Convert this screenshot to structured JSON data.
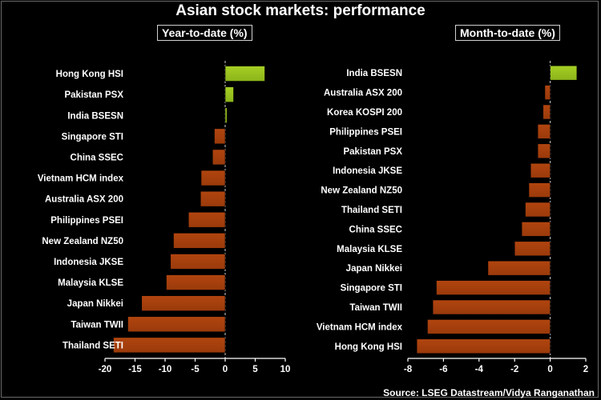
{
  "title": "Asian stock markets: performance",
  "source": "Source: LSEG Datastream/Vidya Ranganathan",
  "colors": {
    "positive": "#8bb41a",
    "negative": "#9a3a0b",
    "background": "#000000"
  },
  "chart_data": [
    {
      "type": "bar",
      "orientation": "horizontal",
      "title": "Year-to-date (%)",
      "categories": [
        "Hong Kong HSI",
        "Pakistan PSX",
        "India BSESN",
        "Singapore STI",
        "China SSEC",
        "Vietnam HCM index",
        "Australia ASX 200",
        "Philippines PSEI",
        "New Zealand NZ50",
        "Indonesia JKSE",
        "Malaysia KLSE",
        "Japan Nikkei",
        "Taiwan TWII",
        "Thailand SETI"
      ],
      "values": [
        6.6,
        1.4,
        0.3,
        -1.8,
        -2.1,
        -4.0,
        -4.1,
        -6.1,
        -8.6,
        -9.1,
        -9.8,
        -13.9,
        -16.2,
        -18.6
      ],
      "xlim": [
        -20,
        10
      ],
      "ticks": [
        -20,
        -15,
        -10,
        -5,
        0,
        5,
        10
      ],
      "tick_labels": [
        "-20",
        "-15",
        "-10",
        "-5",
        "0",
        "5",
        "10"
      ],
      "xlabel": "",
      "ylabel": ""
    },
    {
      "type": "bar",
      "orientation": "horizontal",
      "title": "Month-to-date (%)",
      "categories": [
        "India BSESN",
        "Australia ASX 200",
        "Korea KOSPI 200",
        "Philippines PSEI",
        "Pakistan PSX",
        "Indonesia JKSE",
        "New Zealand NZ50",
        "Thailand SETI",
        "China SSEC",
        "Malaysia KLSE",
        "Japan Nikkei",
        "Singapore STI",
        "Taiwan TWII",
        "Vietnam HCM index",
        "Hong Kong HSI"
      ],
      "values": [
        1.5,
        -0.3,
        -0.4,
        -0.7,
        -0.7,
        -1.1,
        -1.2,
        -1.4,
        -1.6,
        -2.0,
        -3.5,
        -6.4,
        -6.6,
        -6.9,
        -7.5
      ],
      "xlim": [
        -8,
        2
      ],
      "ticks": [
        -8,
        -6,
        -4,
        -2,
        0,
        2
      ],
      "tick_labels": [
        "-8",
        "-6",
        "-4",
        "-2",
        "0",
        "2"
      ],
      "xlabel": "",
      "ylabel": ""
    }
  ]
}
